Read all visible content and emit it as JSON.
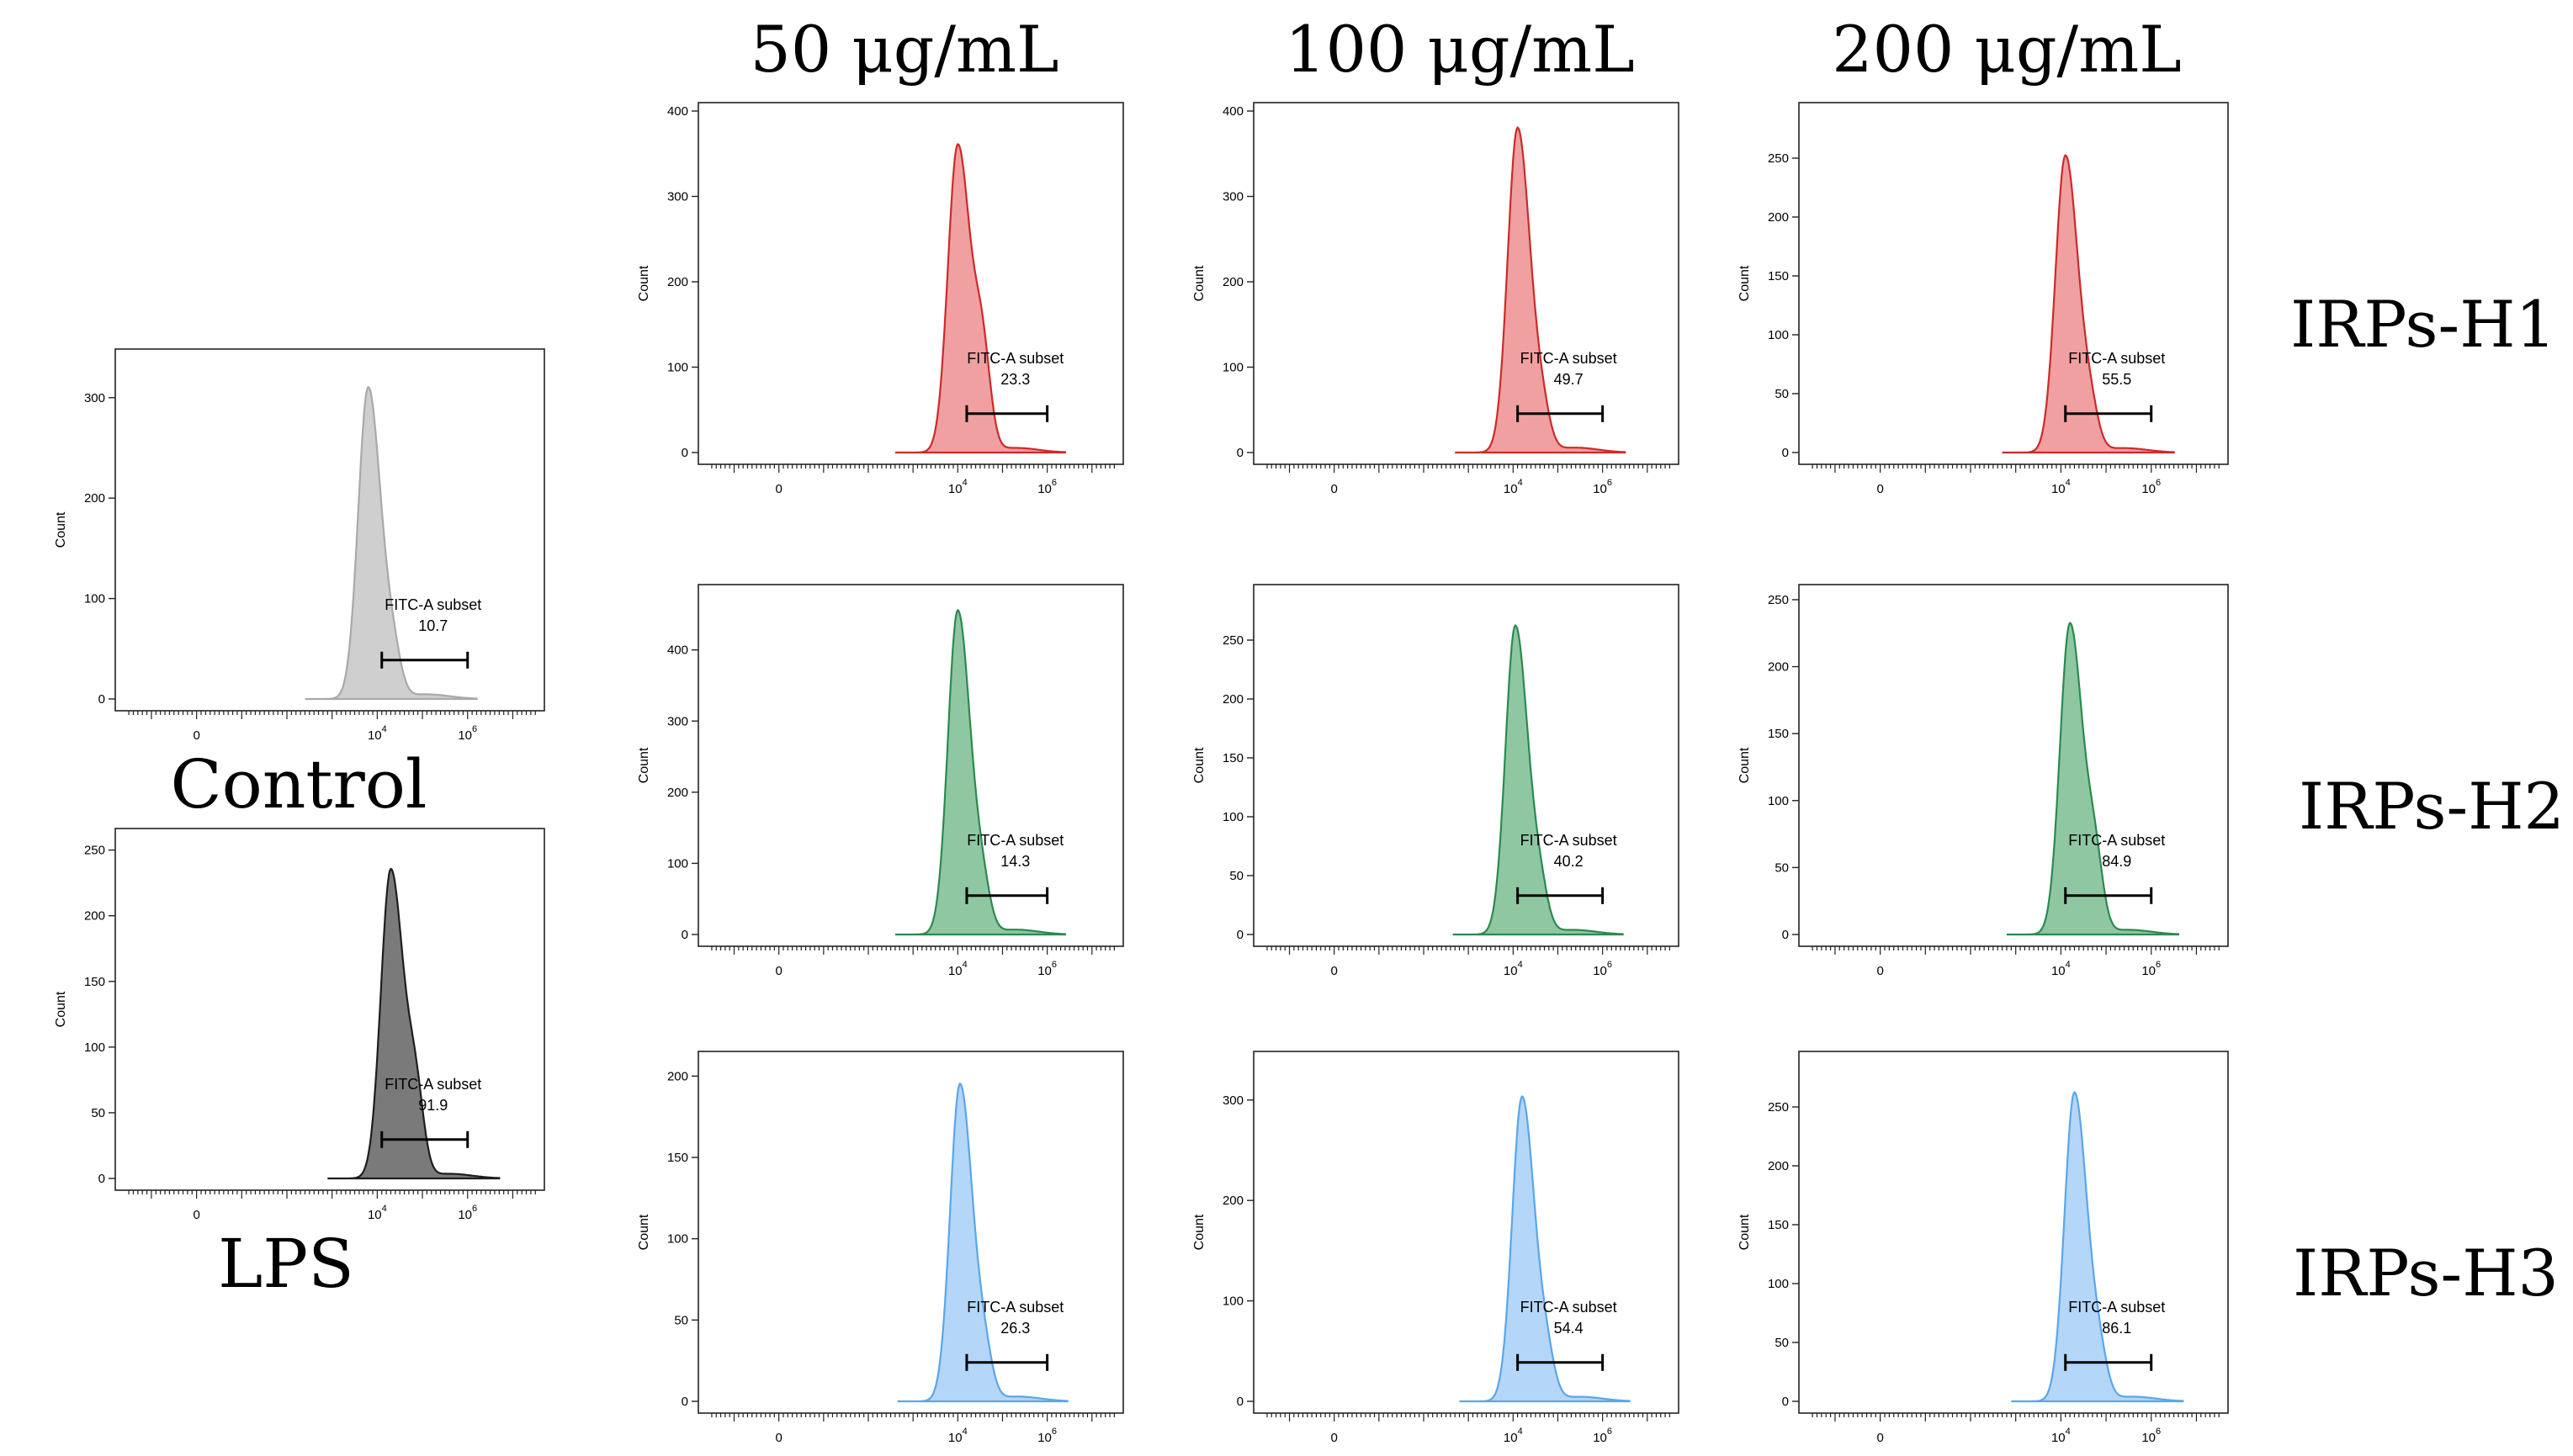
{
  "figure": {
    "column_headers": [
      "50 μg/mL",
      "100 μg/mL",
      "200 μg/mL"
    ],
    "row_labels": [
      "IRPs-H1",
      "IRPs-H2",
      "IRPs-H3"
    ],
    "control_label": "Control",
    "lps_label": "LPS"
  },
  "colors": {
    "gray_light": "#cfcfcf",
    "gray_light_line": "#a9a9a9",
    "gray_dark": "#7a7a7a",
    "gray_dark_line": "#1e1e1e",
    "red": "#f0a0a0",
    "red_line": "#cc2a2a",
    "green": "#8fc7a3",
    "green_line": "#2b8a4f",
    "blue": "#b4d6f8",
    "blue_line": "#5aa6ea"
  },
  "chart_data": [
    {
      "type": "area",
      "id": "control",
      "caption": "Control",
      "ylabel": "Count",
      "ylim": [
        0,
        340
      ],
      "yticks": [
        0,
        100,
        200,
        300
      ],
      "xtick_labels": [
        "0",
        "10^4",
        "10^6"
      ],
      "peak_center_log": 3.8,
      "peak_height": 310,
      "shoulder": 0.12,
      "gate_label": "FITC-A subset",
      "gate_value": "10.7",
      "gate_range_log": [
        4.1,
        6.0
      ],
      "color": "gray_light"
    },
    {
      "type": "area",
      "id": "lps",
      "caption": "LPS",
      "ylabel": "Count",
      "ylim": [
        0,
        260
      ],
      "yticks": [
        0,
        50,
        100,
        150,
        200,
        250
      ],
      "xtick_labels": [
        "0",
        "10^4",
        "10^6"
      ],
      "peak_center_log": 4.3,
      "peak_height": 235,
      "shoulder": 0.25,
      "gate_label": "FITC-A subset",
      "gate_value": "91.9",
      "gate_range_log": [
        4.1,
        6.0
      ],
      "color": "gray_dark"
    },
    {
      "type": "area",
      "id": "h1-50",
      "ylabel": "Count",
      "ylim": [
        0,
        400
      ],
      "yticks": [
        0,
        100,
        200,
        300,
        400
      ],
      "xtick_labels": [
        "0",
        "10^4",
        "10^6"
      ],
      "peak_center_log": 4.0,
      "peak_height": 360,
      "shoulder": 0.3,
      "gate_label": "FITC-A subset",
      "gate_value": "23.3",
      "gate_range_log": [
        4.2,
        6.0
      ],
      "color": "red"
    },
    {
      "type": "area",
      "id": "h1-100",
      "ylabel": "Count",
      "ylim": [
        0,
        400
      ],
      "yticks": [
        0,
        100,
        200,
        300,
        400
      ],
      "xtick_labels": [
        "0",
        "10^4",
        "10^6"
      ],
      "peak_center_log": 4.1,
      "peak_height": 380,
      "shoulder": 0.1,
      "gate_label": "FITC-A subset",
      "gate_value": "49.7",
      "gate_range_log": [
        4.1,
        6.0
      ],
      "color": "red"
    },
    {
      "type": "area",
      "id": "h1-200",
      "ylabel": "Count",
      "ylim": [
        0,
        290
      ],
      "yticks": [
        0,
        50,
        100,
        150,
        200,
        250
      ],
      "xtick_labels": [
        "0",
        "10^4",
        "10^6"
      ],
      "peak_center_log": 4.1,
      "peak_height": 252,
      "shoulder": 0.12,
      "gate_label": "FITC-A subset",
      "gate_value": "55.5",
      "gate_range_log": [
        4.1,
        6.0
      ],
      "color": "red"
    },
    {
      "type": "area",
      "id": "h2-50",
      "ylabel": "Count",
      "ylim": [
        0,
        480
      ],
      "yticks": [
        0,
        100,
        200,
        300,
        400
      ],
      "xtick_labels": [
        "0",
        "10^4",
        "10^6"
      ],
      "peak_center_log": 4.0,
      "peak_height": 455,
      "shoulder": 0.12,
      "gate_label": "FITC-A subset",
      "gate_value": "14.3",
      "gate_range_log": [
        4.2,
        6.0
      ],
      "color": "green"
    },
    {
      "type": "area",
      "id": "h2-100",
      "ylabel": "Count",
      "ylim": [
        0,
        290
      ],
      "yticks": [
        0,
        50,
        100,
        150,
        200,
        250
      ],
      "xtick_labels": [
        "0",
        "10^4",
        "10^6"
      ],
      "peak_center_log": 4.05,
      "peak_height": 262,
      "shoulder": 0.12,
      "gate_label": "FITC-A subset",
      "gate_value": "40.2",
      "gate_range_log": [
        4.1,
        6.0
      ],
      "color": "green"
    },
    {
      "type": "area",
      "id": "h2-200",
      "ylabel": "Count",
      "ylim": [
        0,
        255
      ],
      "yticks": [
        0,
        50,
        100,
        150,
        200,
        250
      ],
      "xtick_labels": [
        "0",
        "10^4",
        "10^6"
      ],
      "peak_center_log": 4.2,
      "peak_height": 232,
      "shoulder": 0.22,
      "gate_label": "FITC-A subset",
      "gate_value": "84.9",
      "gate_range_log": [
        4.1,
        6.0
      ],
      "color": "green"
    },
    {
      "type": "area",
      "id": "h3-50",
      "ylabel": "Count",
      "ylim": [
        0,
        210
      ],
      "yticks": [
        0,
        50,
        100,
        150,
        200
      ],
      "xtick_labels": [
        "0",
        "10^4",
        "10^6"
      ],
      "peak_center_log": 4.05,
      "peak_height": 195,
      "shoulder": 0.12,
      "gate_label": "FITC-A subset",
      "gate_value": "26.3",
      "gate_range_log": [
        4.2,
        6.0
      ],
      "color": "blue"
    },
    {
      "type": "area",
      "id": "h3-100",
      "ylabel": "Count",
      "ylim": [
        0,
        340
      ],
      "yticks": [
        0,
        100,
        200,
        300
      ],
      "xtick_labels": [
        "0",
        "10^4",
        "10^6"
      ],
      "peak_center_log": 4.2,
      "peak_height": 303,
      "shoulder": 0.12,
      "gate_label": "FITC-A subset",
      "gate_value": "54.4",
      "gate_range_log": [
        4.1,
        6.0
      ],
      "color": "blue"
    },
    {
      "type": "area",
      "id": "h3-200",
      "ylabel": "Count",
      "ylim": [
        0,
        290
      ],
      "yticks": [
        0,
        50,
        100,
        150,
        200,
        250
      ],
      "xtick_labels": [
        "0",
        "10^4",
        "10^6"
      ],
      "peak_center_log": 4.3,
      "peak_height": 262,
      "shoulder": 0.12,
      "gate_label": "FITC-A subset",
      "gate_value": "86.1",
      "gate_range_log": [
        4.1,
        6.0
      ],
      "color": "blue"
    }
  ]
}
